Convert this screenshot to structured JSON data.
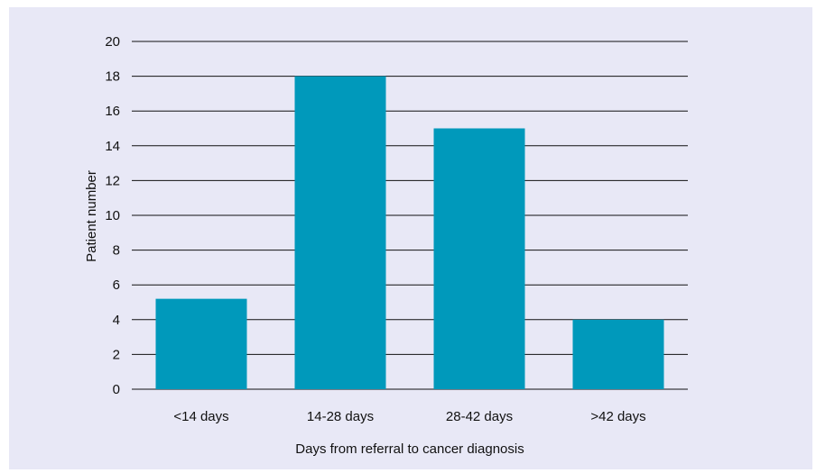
{
  "chart_data": {
    "type": "bar",
    "title": "",
    "xlabel": "Days from referral to cancer diagnosis",
    "ylabel": "Patient number",
    "categories": [
      "<14 days",
      "14-28 days",
      "28-42 days",
      ">42 days"
    ],
    "values": [
      5.2,
      18,
      15,
      4
    ],
    "ylim": [
      0,
      20
    ],
    "yticks": [
      0,
      2,
      4,
      6,
      8,
      10,
      12,
      14,
      16,
      18,
      20
    ],
    "grid": true,
    "legend": "none",
    "colors": {
      "bar": "#0099bb",
      "panel_background": "#e8e8f6",
      "gridline": "#111111"
    }
  }
}
